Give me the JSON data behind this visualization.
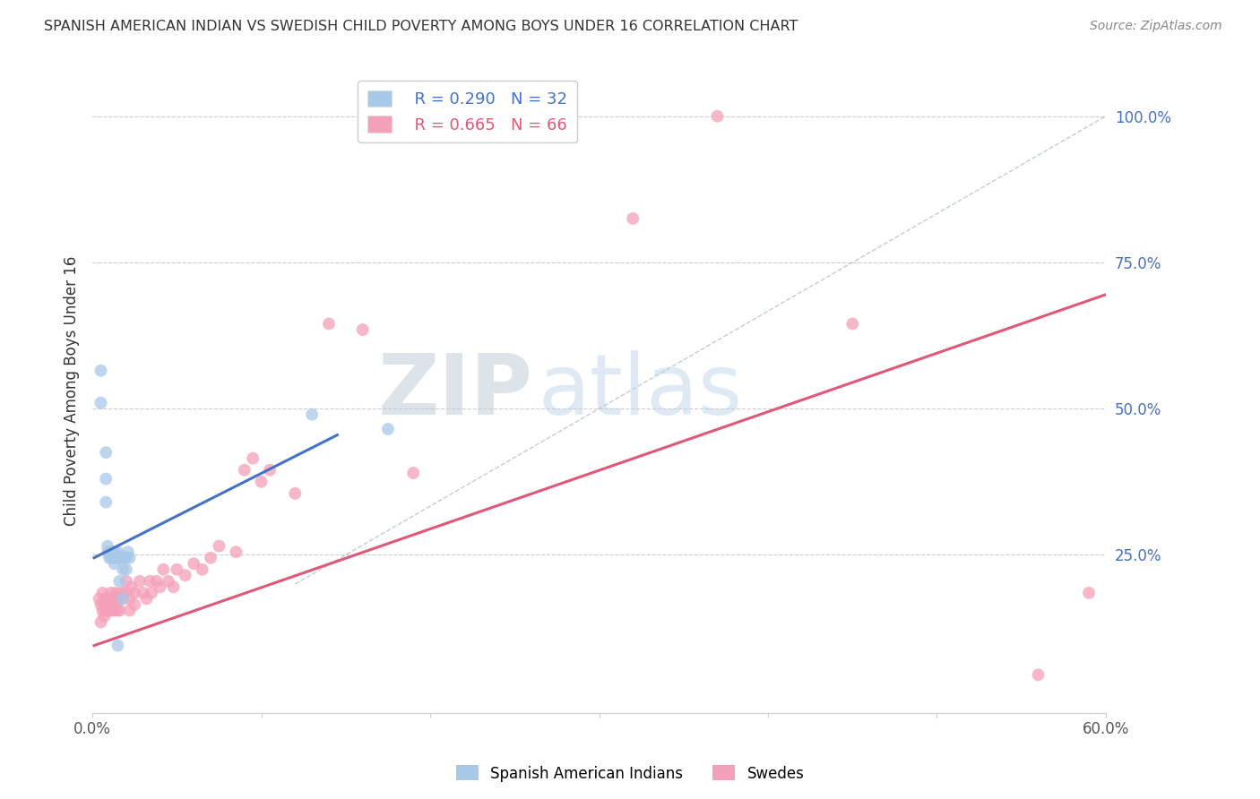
{
  "title": "SPANISH AMERICAN INDIAN VS SWEDISH CHILD POVERTY AMONG BOYS UNDER 16 CORRELATION CHART",
  "source": "Source: ZipAtlas.com",
  "ylabel": "Child Poverty Among Boys Under 16",
  "watermark_zip": "ZIP",
  "watermark_atlas": "atlas",
  "xlim": [
    0.0,
    0.6
  ],
  "ylim": [
    -0.02,
    1.08
  ],
  "xtick_positions": [
    0.0,
    0.1,
    0.2,
    0.3,
    0.4,
    0.5,
    0.6
  ],
  "xticklabels": [
    "0.0%",
    "",
    "",
    "",
    "",
    "",
    "60.0%"
  ],
  "ytick_positions": [
    0.0,
    0.25,
    0.5,
    0.75,
    1.0
  ],
  "yticklabels_right": [
    "",
    "25.0%",
    "50.0%",
    "75.0%",
    "100.0%"
  ],
  "blue_R": 0.29,
  "blue_N": 32,
  "pink_R": 0.665,
  "pink_N": 66,
  "blue_color": "#a8c8e8",
  "blue_line_color": "#4472c4",
  "pink_color": "#f4a0b8",
  "pink_line_color": "#e05878",
  "legend_blue_label": "Spanish American Indians",
  "legend_pink_label": "Swedes",
  "blue_scatter_x": [
    0.005,
    0.005,
    0.008,
    0.008,
    0.008,
    0.009,
    0.009,
    0.01,
    0.01,
    0.011,
    0.011,
    0.012,
    0.012,
    0.013,
    0.013,
    0.013,
    0.014,
    0.015,
    0.015,
    0.015,
    0.016,
    0.016,
    0.017,
    0.018,
    0.018,
    0.019,
    0.02,
    0.02,
    0.021,
    0.022,
    0.13,
    0.175
  ],
  "blue_scatter_y": [
    0.565,
    0.51,
    0.425,
    0.38,
    0.34,
    0.265,
    0.255,
    0.255,
    0.245,
    0.255,
    0.245,
    0.255,
    0.245,
    0.255,
    0.245,
    0.235,
    0.245,
    0.255,
    0.245,
    0.095,
    0.245,
    0.205,
    0.245,
    0.225,
    0.175,
    0.245,
    0.245,
    0.225,
    0.255,
    0.245,
    0.49,
    0.465
  ],
  "pink_scatter_x": [
    0.004,
    0.005,
    0.005,
    0.006,
    0.006,
    0.007,
    0.007,
    0.008,
    0.008,
    0.009,
    0.009,
    0.01,
    0.01,
    0.011,
    0.011,
    0.012,
    0.012,
    0.013,
    0.013,
    0.014,
    0.014,
    0.015,
    0.015,
    0.016,
    0.016,
    0.017,
    0.018,
    0.019,
    0.02,
    0.022,
    0.022,
    0.023,
    0.025,
    0.025,
    0.028,
    0.03,
    0.032,
    0.034,
    0.035,
    0.038,
    0.04,
    0.042,
    0.045,
    0.048,
    0.05,
    0.055,
    0.06,
    0.065,
    0.07,
    0.075,
    0.085,
    0.09,
    0.095,
    0.1,
    0.105,
    0.12,
    0.14,
    0.16,
    0.19,
    0.22,
    0.27,
    0.32,
    0.37,
    0.45,
    0.56,
    0.59
  ],
  "pink_scatter_y": [
    0.175,
    0.165,
    0.135,
    0.185,
    0.155,
    0.165,
    0.145,
    0.175,
    0.155,
    0.175,
    0.155,
    0.175,
    0.155,
    0.185,
    0.165,
    0.175,
    0.155,
    0.175,
    0.155,
    0.185,
    0.165,
    0.175,
    0.155,
    0.175,
    0.155,
    0.185,
    0.175,
    0.185,
    0.205,
    0.175,
    0.155,
    0.195,
    0.185,
    0.165,
    0.205,
    0.185,
    0.175,
    0.205,
    0.185,
    0.205,
    0.195,
    0.225,
    0.205,
    0.195,
    0.225,
    0.215,
    0.235,
    0.225,
    0.245,
    0.265,
    0.255,
    0.395,
    0.415,
    0.375,
    0.395,
    0.355,
    0.645,
    0.635,
    0.39,
    1.0,
    1.0,
    0.825,
    1.0,
    0.645,
    0.045,
    0.185
  ],
  "blue_line_x": [
    0.001,
    0.145
  ],
  "blue_line_y": [
    0.245,
    0.455
  ],
  "pink_line_x": [
    0.001,
    0.6
  ],
  "pink_line_y": [
    0.095,
    0.695
  ],
  "ref_line_x": [
    0.12,
    0.6
  ],
  "ref_line_y": [
    0.2,
    1.0
  ],
  "background_color": "#ffffff",
  "grid_color": "#cccccc",
  "title_color": "#333333",
  "right_tick_color": "#4472c4",
  "watermark_zip_color": "#c0ccd8",
  "watermark_atlas_color": "#b8d0e8"
}
